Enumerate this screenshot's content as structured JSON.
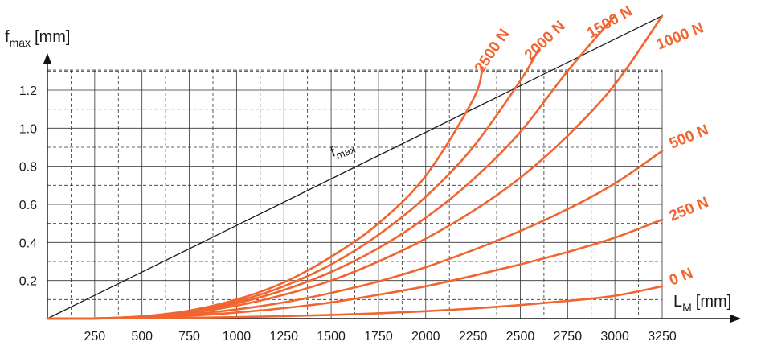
{
  "chart_data": {
    "type": "line",
    "y_axis_label": {
      "symbol": "f",
      "subscript": "max",
      "unit": "[mm]"
    },
    "x_axis_label": {
      "symbol": "L",
      "subscript": "M",
      "unit": "[mm]"
    },
    "x_ticks": [
      250,
      500,
      750,
      1000,
      1250,
      1500,
      1750,
      2000,
      2250,
      2500,
      2750,
      3000,
      3250
    ],
    "y_ticks": [
      "0.2",
      "0.4",
      "0.6",
      "0.8",
      "1.0",
      "1.2"
    ],
    "xlim": [
      0,
      3250
    ],
    "ylim": [
      0,
      1.3
    ],
    "grid": true,
    "limit_line": {
      "label_symbol": "f",
      "label_subscript": "max",
      "x": [
        0,
        3250
      ],
      "y": [
        0,
        1.59
      ],
      "color": "#1a1a1a"
    },
    "series_color": "#f06530",
    "series": [
      {
        "name": "0 N",
        "x": [
          0,
          250,
          500,
          750,
          1000,
          1250,
          1500,
          1750,
          2000,
          2250,
          2500,
          2750,
          3000,
          3250
        ],
        "y": [
          0,
          0.0003,
          0.0016,
          0.0041,
          0.0078,
          0.0128,
          0.0193,
          0.028,
          0.039,
          0.053,
          0.071,
          0.093,
          0.12,
          0.17
        ]
      },
      {
        "name": "250 N",
        "x": [
          0,
          250,
          500,
          750,
          1000,
          1250,
          1500,
          1750,
          2000,
          2250,
          2500,
          2750,
          3000,
          3250
        ],
        "y": [
          0,
          0.001,
          0.005,
          0.015,
          0.032,
          0.055,
          0.085,
          0.125,
          0.17,
          0.225,
          0.285,
          0.35,
          0.425,
          0.52
        ]
      },
      {
        "name": "500 N",
        "x": [
          0,
          250,
          500,
          750,
          1000,
          1250,
          1500,
          1750,
          2000,
          2250,
          2500,
          2750,
          3000,
          3250
        ],
        "y": [
          0,
          0.001,
          0.007,
          0.022,
          0.048,
          0.085,
          0.135,
          0.195,
          0.27,
          0.36,
          0.46,
          0.575,
          0.71,
          0.88
        ]
      },
      {
        "name": "1000 N",
        "x": [
          0,
          250,
          500,
          750,
          1000,
          1250,
          1500,
          1750,
          2000,
          2250,
          2500,
          2750,
          3000,
          3250
        ],
        "y": [
          0,
          0.001,
          0.009,
          0.03,
          0.068,
          0.125,
          0.2,
          0.3,
          0.42,
          0.565,
          0.74,
          0.96,
          1.23,
          1.59
        ]
      },
      {
        "name": "1500 N",
        "x": [
          0,
          250,
          500,
          750,
          1000,
          1250,
          1500,
          1750,
          2000,
          2250,
          2500,
          2750,
          3000
        ],
        "y": [
          0,
          0.001,
          0.01,
          0.035,
          0.08,
          0.15,
          0.245,
          0.37,
          0.53,
          0.73,
          0.98,
          1.3,
          1.59
        ]
      },
      {
        "name": "2000 N",
        "x": [
          0,
          250,
          500,
          750,
          1000,
          1250,
          1500,
          1750,
          2000,
          2250,
          2500,
          2600
        ],
        "y": [
          0,
          0.001,
          0.011,
          0.038,
          0.09,
          0.17,
          0.285,
          0.44,
          0.64,
          0.9,
          1.25,
          1.42
        ]
      },
      {
        "name": "2500 N",
        "x": [
          0,
          250,
          500,
          750,
          1000,
          1250,
          1500,
          1750,
          2000,
          2250,
          2300
        ],
        "y": [
          0,
          0.001,
          0.012,
          0.042,
          0.1,
          0.19,
          0.325,
          0.5,
          0.75,
          1.15,
          1.32
        ]
      }
    ]
  }
}
